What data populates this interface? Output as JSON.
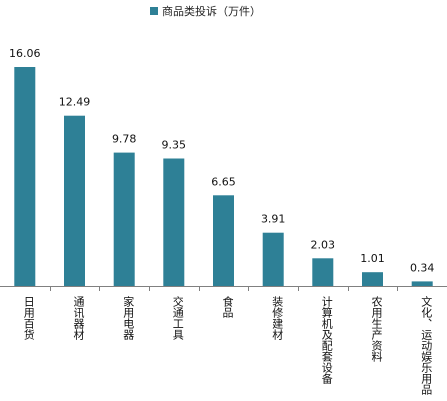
{
  "chart_data": {
    "type": "bar",
    "series": [
      {
        "name": "商品类投诉（万件）",
        "color": "#2e8096",
        "values": [
          16.06,
          12.49,
          9.78,
          9.35,
          6.65,
          3.91,
          2.03,
          1.01,
          0.34
        ]
      }
    ],
    "categories": [
      "日用百货",
      "通讯器材",
      "家用电器",
      "交通工具",
      "食品",
      "装修建材",
      "计算机及配套设备",
      "农用生产资料",
      "文化、运动娱乐用品"
    ],
    "value_labels": [
      "16.06",
      "12.49",
      "9.78",
      "9.35",
      "6.65",
      "3.91",
      "2.03",
      "1.01",
      "0.34"
    ],
    "ylim": [
      0,
      18
    ],
    "legend_position": "top",
    "grid": false,
    "axis_color": "#808080"
  }
}
